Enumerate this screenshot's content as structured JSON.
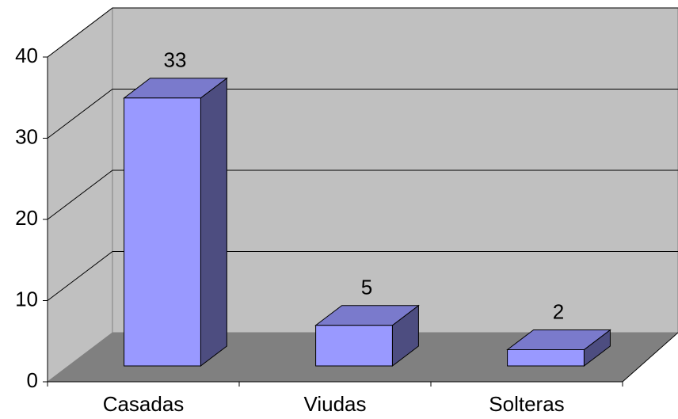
{
  "chart_data": {
    "type": "bar3d",
    "categories": [
      "Casadas",
      "Viudas",
      "Solteras"
    ],
    "values": [
      33,
      5,
      2
    ],
    "color": "#9999ff",
    "ylim": [
      0,
      40
    ],
    "yticks": [
      0,
      10,
      20,
      30,
      40
    ],
    "grid": true
  }
}
